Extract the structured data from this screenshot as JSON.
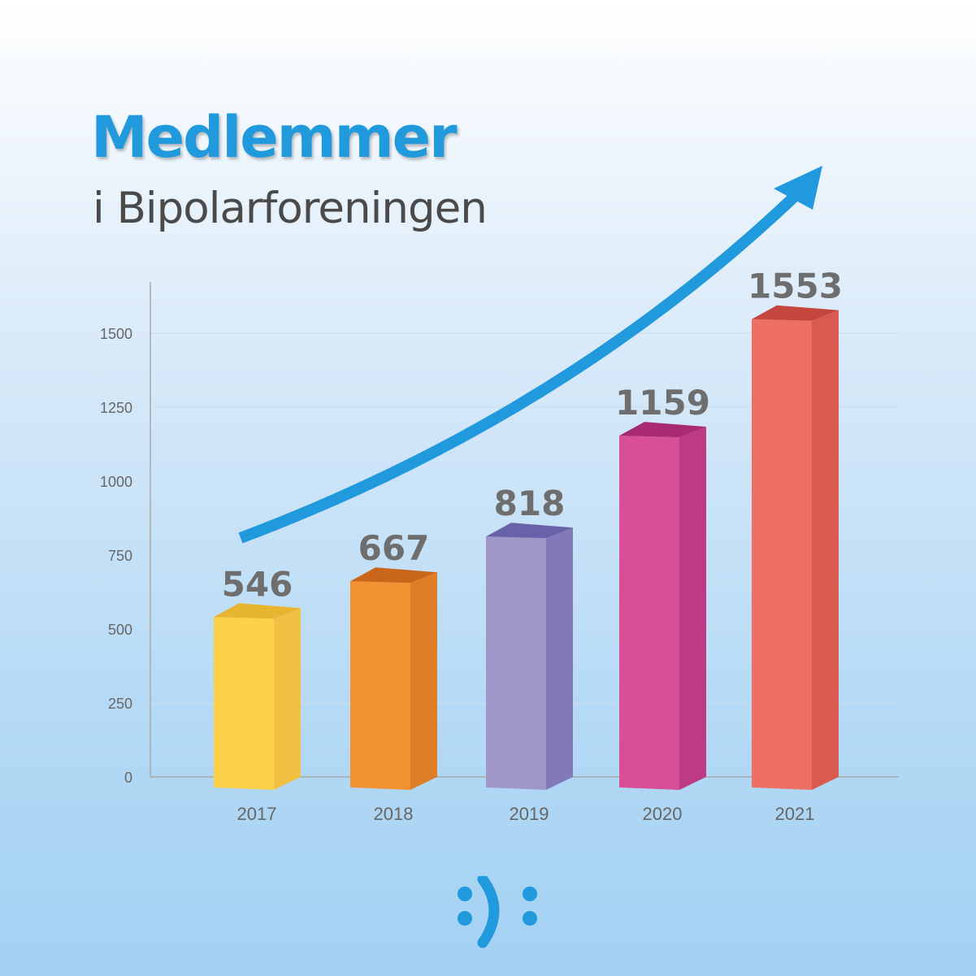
{
  "header": {
    "title": "Medlemmer",
    "subtitle": "i Bipolarforeningen"
  },
  "colors": {
    "title": "#2199dd",
    "arrow": "#2199dd",
    "logo": "#2199dd",
    "bars": [
      {
        "front": "#fdd14a",
        "side": "#f0c142",
        "top": "#e7b52f"
      },
      {
        "front": "#f29232",
        "side": "#e07e28",
        "top": "#c9661a"
      },
      {
        "front": "#a097c9",
        "side": "#8279b8",
        "top": "#6a62a8"
      },
      {
        "front": "#d84f98",
        "side": "#bf3a84",
        "top": "#a82a70"
      },
      {
        "front": "#ee7064",
        "side": "#d95a4f",
        "top": "#c4463d"
      }
    ]
  },
  "chart_data": {
    "type": "bar",
    "title": "Medlemmer",
    "subtitle": "i Bipolarforeningen",
    "categories": [
      "2017",
      "2018",
      "2019",
      "2020",
      "2021"
    ],
    "values": [
      546,
      667,
      818,
      1159,
      1553
    ],
    "value_labels": [
      "546",
      "667",
      "818",
      "1159",
      "1553"
    ],
    "yticks": [
      "0",
      "250",
      "500",
      "750",
      "1000",
      "1250",
      "1500"
    ],
    "ylim": [
      0,
      1650
    ],
    "grid": true,
    "style": "3d-bars",
    "annotation": "upward-trend-arrow"
  },
  "logo": {
    "name": "smiley-logo-icon"
  }
}
